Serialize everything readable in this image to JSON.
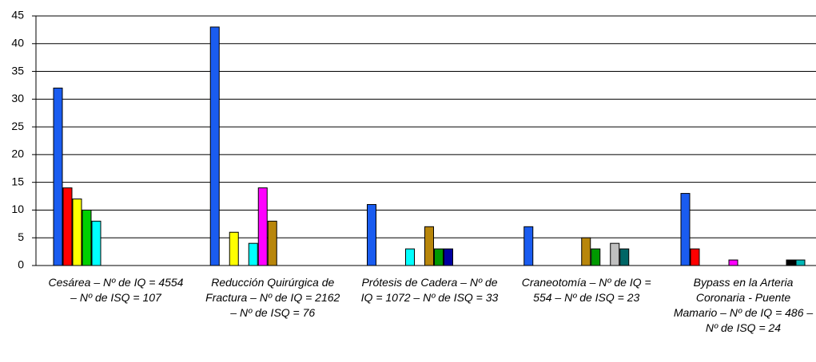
{
  "chart_data": {
    "type": "bar",
    "categories": [
      "Cesárea – Nº de IQ = 4554 – Nº de ISQ = 107",
      "Reducción Quirúrgica de Fractura – Nº de IQ = 2162 – Nº de ISQ = 76",
      "Prótesis de Cadera – Nº de IQ = 1072 – Nº de ISQ = 33",
      "Craneotomía – Nº de IQ = 554 – Nº de ISQ = 23",
      "Bypass en la Arteria Coronaria - Puente Mamario – Nº de IQ = 486 – Nº de ISQ = 24"
    ],
    "series": [
      {
        "color": "#1a5cf0",
        "values": [
          32,
          43,
          11,
          7,
          13
        ]
      },
      {
        "color": "#ff0000",
        "values": [
          14,
          0,
          0,
          0,
          3
        ]
      },
      {
        "color": "#ffff00",
        "values": [
          12,
          6,
          0,
          0,
          0
        ]
      },
      {
        "color": "#00d000",
        "values": [
          10,
          0,
          0,
          0,
          0
        ]
      },
      {
        "color": "#00ffff",
        "values": [
          8,
          4,
          3,
          0,
          0
        ]
      },
      {
        "color": "#ff00ff",
        "values": [
          0,
          14,
          0,
          0,
          1
        ]
      },
      {
        "color": "#b8860b",
        "values": [
          0,
          8,
          7,
          5,
          0
        ]
      },
      {
        "color": "#009900",
        "values": [
          0,
          0,
          3,
          3,
          0
        ]
      },
      {
        "color": "#0000a0",
        "values": [
          0,
          0,
          3,
          0,
          0
        ]
      },
      {
        "color": "#c0c0c0",
        "values": [
          0,
          0,
          0,
          4,
          0
        ]
      },
      {
        "color": "#006666",
        "values": [
          0,
          0,
          0,
          3,
          0
        ]
      },
      {
        "color": "#000000",
        "values": [
          0,
          0,
          0,
          0,
          1
        ]
      },
      {
        "color": "#00b8b8",
        "values": [
          0,
          0,
          0,
          0,
          1
        ]
      }
    ],
    "ylim": [
      0,
      45
    ],
    "yticks": [
      0,
      5,
      10,
      15,
      20,
      25,
      30,
      35,
      40,
      45
    ],
    "grid": true
  }
}
